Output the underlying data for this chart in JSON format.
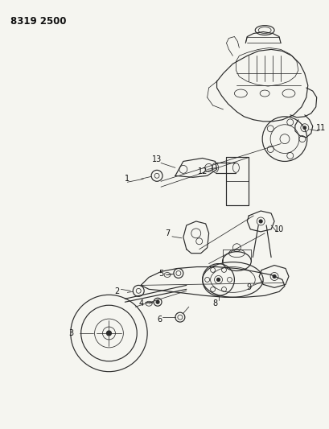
{
  "title_code": "8319 2500",
  "bg": "#f5f5f0",
  "lc": "#2a2a2a",
  "fig_width": 4.1,
  "fig_height": 5.33,
  "dpi": 100,
  "title_fs": 8.5,
  "label_fs": 7.0
}
